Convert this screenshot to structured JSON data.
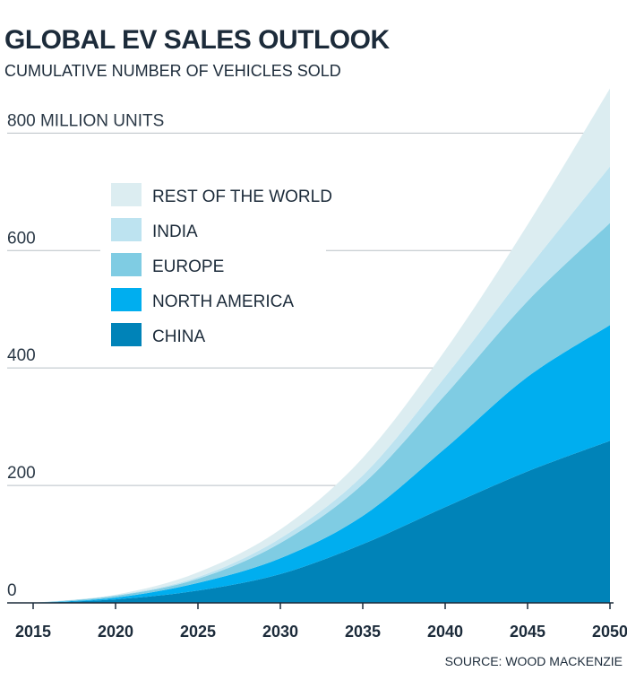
{
  "chart_data": {
    "type": "stacked_area",
    "title": "GLOBAL EV SALES OUTLOOK",
    "subtitle": "CUMULATIVE NUMBER OF VEHICLES SOLD",
    "source": "SOURCE: WOOD MACKENZIE",
    "x": [
      2015,
      2020,
      2025,
      2030,
      2035,
      2040,
      2045,
      2050
    ],
    "xlim": [
      2015,
      2050
    ],
    "xticks": [
      2015,
      2020,
      2025,
      2030,
      2035,
      2040,
      2045,
      2050
    ],
    "ylim": [
      0,
      880
    ],
    "yticks": [
      0,
      200,
      400,
      600,
      {
        "value": 800,
        "label": "800 MILLION UNITS"
      }
    ],
    "grid": true,
    "legend": "upper left",
    "series": [
      {
        "name": "CHINA",
        "color": "#0083b8",
        "values": [
          0,
          6,
          21,
          49,
          100,
          163,
          224,
          276
        ]
      },
      {
        "name": "NORTH AMERICA",
        "color": "#00aeef",
        "values": [
          0,
          3,
          13,
          27,
          48,
          100,
          161,
          197
        ]
      },
      {
        "name": "EUROPE",
        "color": "#7fcce3",
        "values": [
          0,
          3,
          7,
          26,
          54,
          91,
          129,
          174
        ]
      },
      {
        "name": "INDIA",
        "color": "#bde3f0",
        "values": [
          0,
          1,
          3,
          8,
          15,
          31,
          54,
          96
        ]
      },
      {
        "name": "REST OF THE WORLD",
        "color": "#dcedf1",
        "values": [
          0,
          1,
          8,
          15,
          30,
          45,
          76,
          133
        ]
      }
    ]
  }
}
